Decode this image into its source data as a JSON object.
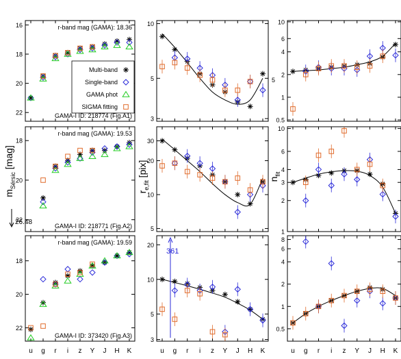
{
  "figure": {
    "ylabels": {
      "col0_main": "m",
      "col0_sub": "Sérsic",
      "col0_unit": " [mag]",
      "col1_main": "r",
      "col1_sub": "e,fit",
      "col1_unit": " [pix]",
      "col2_main": "n",
      "col2_sub": "fit"
    },
    "xtick_labels": [
      "u",
      "g",
      "r",
      "i",
      "z",
      "Y",
      "J",
      "H",
      "K"
    ],
    "legend": {
      "multi": "Multi-band",
      "single": "Single-band",
      "gama": "GAMA phot",
      "sigma": "SIGMA fitting"
    },
    "colors": {
      "multi": "#000000",
      "single": "#2b2bd9",
      "gama": "#22cc22",
      "sigma": "#e06a2a",
      "line": "#000000"
    },
    "annotations": {
      "row1_lower_limit": "26.48",
      "row2_upper_value": "361",
      "col1_row0_extra_tick": "5"
    }
  },
  "chart_data": [
    {
      "type": "scatter",
      "row": 0,
      "col": 0,
      "ylim": [
        22.6,
        15.7
      ],
      "yscale": "linear",
      "yticks": [
        16,
        18,
        20,
        22
      ],
      "rband_label": "r-band mag (GAMA): 18.36",
      "id_label": "GAMA-I ID: 218774",
      "fig_label": "(Fig.A1)",
      "series": [
        {
          "name": "Multi-band",
          "marker": "star",
          "x": [
            0,
            1,
            2,
            3,
            4,
            5,
            6,
            7,
            8
          ],
          "y": [
            21.0,
            19.5,
            18.1,
            17.9,
            17.6,
            17.5,
            17.3,
            17.1,
            17.0
          ]
        },
        {
          "name": "Single-band",
          "marker": "diamond",
          "x": [
            0,
            1,
            2,
            3,
            4,
            5,
            6,
            7,
            8
          ],
          "y": [
            21.0,
            19.6,
            18.2,
            18.0,
            17.7,
            17.6,
            17.4,
            17.2,
            17.2
          ]
        },
        {
          "name": "GAMA phot",
          "marker": "triangle",
          "x": [
            0,
            1,
            2,
            3,
            4,
            5,
            6,
            7,
            8
          ],
          "y": [
            21.0,
            19.7,
            18.3,
            18.0,
            17.8,
            17.7,
            17.5,
            17.4,
            17.5
          ]
        },
        {
          "name": "SIGMA fitting",
          "marker": "square",
          "x": [
            1,
            2,
            3,
            4,
            5
          ],
          "y": [
            19.5,
            18.1,
            17.9,
            17.6,
            17.5
          ]
        }
      ]
    },
    {
      "type": "scatter",
      "row": 1,
      "col": 0,
      "ylim": [
        22.6,
        17.3
      ],
      "yscale": "linear",
      "yticks": [
        18,
        20,
        22
      ],
      "rband_label": "r-band mag (GAMA): 19.53",
      "id_label": "GAMA-I ID: 218771",
      "fig_label": "(Fig.A2)",
      "series": [
        {
          "name": "Multi-band",
          "marker": "star",
          "x": [
            1,
            2,
            3,
            4,
            5,
            6,
            7,
            8
          ],
          "y": [
            20.9,
            19.3,
            19.0,
            18.7,
            18.5,
            18.5,
            18.3,
            18.1
          ]
        },
        {
          "name": "Single-band",
          "marker": "diamond",
          "x": [
            1,
            2,
            3,
            4,
            5,
            6,
            7,
            8
          ],
          "y": [
            21.1,
            19.4,
            19.1,
            18.9,
            18.6,
            18.4,
            18.3,
            18.2
          ]
        },
        {
          "name": "GAMA phot",
          "marker": "triangle",
          "x": [
            1,
            2,
            3,
            4,
            5,
            6,
            7,
            8
          ],
          "y": [
            21.3,
            19.5,
            19.2,
            18.9,
            18.8,
            18.7,
            18.4,
            18.3
          ]
        },
        {
          "name": "SIGMA fitting",
          "marker": "square",
          "x": [
            1,
            2,
            3,
            4,
            5
          ],
          "y": [
            20.0,
            19.3,
            18.8,
            18.5,
            18.5
          ]
        }
      ]
    },
    {
      "type": "scatter",
      "row": 2,
      "col": 0,
      "ylim": [
        22.8,
        16.5
      ],
      "yscale": "linear",
      "yticks": [
        18,
        20,
        22
      ],
      "rband_label": "r-band mag (GAMA): 19.59",
      "id_label": "GAMA-I ID: 373420",
      "fig_label": "(Fig.A3)",
      "series": [
        {
          "name": "Multi-band",
          "marker": "star",
          "x": [
            0,
            1,
            2,
            3,
            4,
            5,
            6,
            7,
            8
          ],
          "y": [
            22.1,
            20.5,
            19.3,
            18.9,
            18.6,
            18.3,
            18.1,
            17.7,
            17.5
          ]
        },
        {
          "name": "Single-band",
          "marker": "diamond",
          "x": [
            1,
            2,
            3,
            4,
            5,
            6,
            7,
            8
          ],
          "y": [
            19.1,
            19.4,
            18.5,
            19.1,
            18.7,
            18.1,
            17.7,
            17.6
          ]
        },
        {
          "name": "GAMA phot",
          "marker": "triangle",
          "x": [
            0,
            1,
            2,
            3,
            4,
            5,
            6,
            7,
            8
          ],
          "y": [
            22.6,
            20.6,
            19.5,
            19.2,
            18.8,
            18.3,
            18.0,
            17.7,
            17.5
          ]
        },
        {
          "name": "SIGMA fitting",
          "marker": "square",
          "x": [
            0,
            1,
            2,
            3,
            4,
            5
          ],
          "y": [
            22.0,
            21.9,
            19.4,
            18.8,
            18.7,
            18.2
          ]
        }
      ]
    },
    {
      "type": "scatter",
      "row": 0,
      "col": 1,
      "ylim": [
        2.9,
        10.4
      ],
      "yscale": "log",
      "yticks": [
        3,
        5,
        10
      ],
      "series": [
        {
          "name": "Multi-band",
          "marker": "star",
          "x": [
            0,
            1,
            2,
            3,
            4,
            5,
            6,
            7,
            8
          ],
          "y": [
            8.5,
            7.2,
            6.2,
            5.3,
            4.6,
            4.2,
            3.7,
            3.5,
            5.3
          ]
        },
        {
          "name": "Single-band",
          "marker": "diamond",
          "x": [
            1,
            2,
            3,
            4,
            5,
            6,
            7,
            8
          ],
          "y": [
            6.5,
            6.4,
            5.7,
            5.2,
            4.6,
            3.8,
            4.8,
            4.3
          ]
        },
        {
          "name": "SIGMA fitting",
          "marker": "square",
          "x": [
            0,
            1,
            2,
            3,
            4,
            5,
            6,
            7
          ],
          "y": [
            5.8,
            6.1,
            5.7,
            5.2,
            4.9,
            4.3,
            4.3,
            4.8
          ]
        }
      ],
      "fit_x": [
        0,
        1,
        2,
        3,
        4,
        5,
        6,
        7,
        8
      ],
      "fit_y": [
        8.8,
        7.4,
        6.1,
        5.0,
        4.2,
        3.8,
        3.6,
        3.8,
        5.0
      ]
    },
    {
      "type": "scatter",
      "row": 1,
      "col": 1,
      "ylim": [
        4.7,
        40
      ],
      "yscale": "log",
      "yticks": [
        5,
        10,
        20,
        30
      ],
      "series": [
        {
          "name": "Multi-band",
          "marker": "star",
          "x": [
            0,
            1,
            2,
            3,
            4,
            5,
            6,
            7,
            8
          ],
          "y": [
            30,
            25,
            21,
            18,
            15,
            13,
            10,
            8.3,
            13
          ]
        },
        {
          "name": "Single-band",
          "marker": "diamond",
          "x": [
            1,
            2,
            3,
            4,
            5,
            6,
            7,
            8
          ],
          "y": [
            19,
            22,
            19,
            17,
            13,
            7,
            10,
            12
          ]
        },
        {
          "name": "SIGMA fitting",
          "marker": "square",
          "x": [
            0,
            1,
            2,
            3,
            4,
            5,
            6,
            7,
            8
          ],
          "y": [
            18,
            19,
            16,
            15,
            14,
            13,
            14,
            11,
            13
          ]
        }
      ],
      "fit_x": [
        0,
        1,
        2,
        3,
        4,
        5,
        6,
        7,
        8
      ],
      "fit_y": [
        31,
        25,
        20,
        16,
        12.5,
        10,
        8.5,
        8.2,
        14
      ]
    },
    {
      "type": "scatter",
      "row": 2,
      "col": 1,
      "ylim": [
        2.9,
        24
      ],
      "yscale": "log",
      "yticks": [
        3,
        5,
        10,
        20
      ],
      "series": [
        {
          "name": "Multi-band",
          "marker": "star",
          "x": [
            0,
            1,
            2,
            3,
            4,
            5,
            6,
            7,
            8
          ],
          "y": [
            10,
            9.6,
            9.2,
            8.5,
            8.0,
            7.4,
            6.4,
            5.5,
            4.5
          ]
        },
        {
          "name": "Single-band",
          "marker": "diamond",
          "x": [
            1,
            2,
            3,
            4,
            5,
            6,
            7,
            8
          ],
          "y": [
            8.0,
            9.0,
            8.0,
            8.6,
            3.5,
            8.2,
            5.5,
            4.4
          ]
        },
        {
          "name": "SIGMA fitting",
          "marker": "square",
          "x": [
            0,
            1,
            2,
            3,
            4,
            5
          ],
          "y": [
            5.5,
            4.5,
            8.0,
            7.5,
            3.5,
            3.3
          ]
        }
      ],
      "fit_x": [
        0,
        1,
        2,
        3,
        4,
        5,
        6,
        7,
        8
      ],
      "fit_y": [
        10,
        9.4,
        8.8,
        8.2,
        7.6,
        7.0,
        6.2,
        5.4,
        4.5
      ]
    },
    {
      "type": "scatter",
      "row": 0,
      "col": 2,
      "ylim": [
        0.48,
        10.4
      ],
      "yscale": "log",
      "yticks": [
        0.5,
        1,
        2,
        4,
        6,
        10
      ],
      "series": [
        {
          "name": "Multi-band",
          "marker": "star",
          "x": [
            0,
            1,
            2,
            3,
            4,
            5,
            6,
            7,
            8
          ],
          "y": [
            2.2,
            2.3,
            2.4,
            2.5,
            2.6,
            2.7,
            2.8,
            3.4,
            5.0
          ]
        },
        {
          "name": "Single-band",
          "marker": "diamond",
          "x": [
            1,
            2,
            3,
            4,
            5,
            6,
            7,
            8
          ],
          "y": [
            2.2,
            2.5,
            2.4,
            2.4,
            2.3,
            3.5,
            4.5,
            3.6
          ]
        },
        {
          "name": "SIGMA fitting",
          "marker": "square",
          "x": [
            0,
            1,
            2,
            3,
            4,
            5,
            6,
            7
          ],
          "y": [
            0.7,
            2.0,
            2.4,
            2.6,
            2.6,
            2.5,
            2.6,
            3.5
          ]
        }
      ],
      "fit_x": [
        0,
        1,
        2,
        3,
        4,
        5,
        6,
        7,
        8
      ],
      "fit_y": [
        2.2,
        2.25,
        2.3,
        2.4,
        2.5,
        2.7,
        2.95,
        3.5,
        5.2
      ]
    },
    {
      "type": "scatter",
      "row": 1,
      "col": 2,
      "ylim": [
        1,
        10.4
      ],
      "yscale": "log",
      "yticks": [
        1,
        2,
        3,
        4,
        6,
        10
      ],
      "series": [
        {
          "name": "Multi-band",
          "marker": "star",
          "x": [
            0,
            1,
            2,
            3,
            4,
            5,
            6,
            7,
            8
          ],
          "y": [
            3.0,
            3.2,
            3.5,
            3.7,
            3.9,
            3.9,
            3.6,
            2.9,
            1.5
          ]
        },
        {
          "name": "Single-band",
          "marker": "diamond",
          "x": [
            1,
            2,
            3,
            4,
            5,
            6,
            7,
            8
          ],
          "y": [
            2.0,
            4.0,
            2.8,
            3.6,
            3.2,
            5.0,
            2.3,
            1.4
          ]
        },
        {
          "name": "SIGMA fitting",
          "marker": "square",
          "x": [
            1,
            2,
            3,
            4,
            5,
            6,
            7
          ],
          "y": [
            3.0,
            5.5,
            6.0,
            9.5,
            4.0,
            4.5,
            2.8
          ]
        }
      ],
      "fit_x": [
        0,
        1,
        2,
        3,
        4,
        5,
        6,
        7,
        8
      ],
      "fit_y": [
        3.0,
        3.3,
        3.6,
        3.8,
        3.9,
        3.85,
        3.5,
        2.7,
        1.5
      ]
    },
    {
      "type": "scatter",
      "row": 2,
      "col": 2,
      "ylim": [
        0.34,
        9.0
      ],
      "yscale": "log",
      "yticks": [
        0.5,
        1,
        2,
        4,
        6,
        8
      ],
      "series": [
        {
          "name": "Multi-band",
          "marker": "star",
          "x": [
            0,
            1,
            2,
            3,
            4,
            5,
            6,
            7,
            8
          ],
          "y": [
            0.6,
            0.8,
            1.0,
            1.2,
            1.4,
            1.6,
            1.8,
            1.7,
            1.3
          ]
        },
        {
          "name": "Single-band",
          "marker": "diamond",
          "x": [
            1,
            2,
            3,
            4,
            5,
            6,
            7,
            8
          ],
          "y": [
            7.5,
            1.0,
            3.8,
            0.55,
            1.2,
            1.6,
            1.1,
            1.3
          ]
        },
        {
          "name": "SIGMA fitting",
          "marker": "square",
          "x": [
            0,
            1,
            2,
            3,
            4,
            5,
            6,
            7,
            8
          ],
          "y": [
            0.6,
            0.8,
            1.0,
            1.2,
            1.4,
            1.6,
            1.7,
            1.6,
            1.3
          ]
        }
      ],
      "fit_x": [
        0,
        1,
        2,
        3,
        4,
        5,
        6,
        7,
        8
      ],
      "fit_y": [
        0.6,
        0.8,
        1.0,
        1.2,
        1.4,
        1.6,
        1.75,
        1.75,
        1.4
      ]
    }
  ]
}
